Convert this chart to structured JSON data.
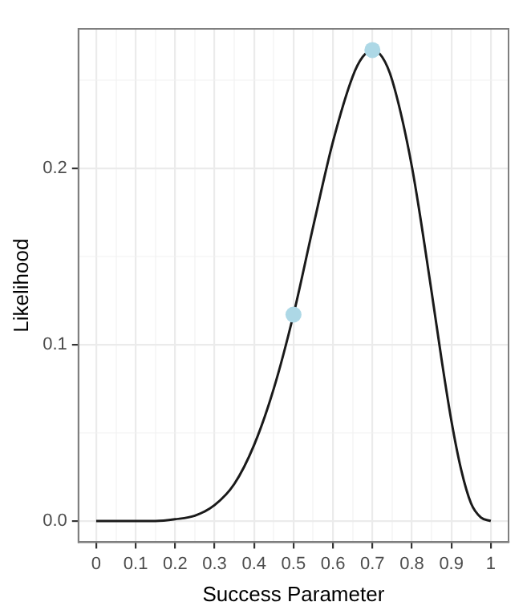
{
  "chart_data": {
    "type": "line",
    "xlabel": "Success Parameter",
    "ylabel": "Likelihood",
    "xlim": [
      -0.045,
      1.045
    ],
    "ylim": [
      -0.012,
      0.279
    ],
    "xticks": [
      0,
      {
        "value": 0.05,
        "label": null
      },
      0.1,
      {
        "value": 0.15,
        "label": null
      },
      0.2,
      {
        "value": 0.25,
        "label": null
      },
      0.3,
      {
        "value": 0.35,
        "label": null
      },
      0.4,
      {
        "value": 0.45,
        "label": null
      },
      0.5,
      {
        "value": 0.55,
        "label": null
      },
      0.6,
      {
        "value": 0.65,
        "label": null
      },
      0.7,
      {
        "value": 0.75,
        "label": null
      },
      0.8,
      {
        "value": 0.85,
        "label": null
      },
      0.9,
      {
        "value": 0.95,
        "label": null
      },
      1
    ],
    "yticks": [
      {
        "value": 0,
        "label": "0.0"
      },
      {
        "value": 0.05,
        "label": null
      },
      0.1,
      {
        "value": 0.15,
        "label": null
      },
      0.2,
      {
        "value": 0.25,
        "label": null
      }
    ],
    "grid": true,
    "legend": false,
    "series": [
      {
        "color": "#1a1a1a",
        "marker": "none",
        "line_style": "solid",
        "x": [
          0,
          0.05,
          0.1,
          0.15,
          0.2,
          0.25,
          0.3,
          0.35,
          0.4,
          0.45,
          0.5,
          0.55,
          0.6,
          0.65,
          0.675,
          0.7,
          0.725,
          0.75,
          0.8,
          0.85,
          0.875,
          0.9,
          0.925,
          0.95,
          0.975,
          1
        ],
        "values": [
          0,
          0,
          0,
          0,
          0.001,
          0.003,
          0.009,
          0.021,
          0.043,
          0.075,
          0.117,
          0.167,
          0.215,
          0.252,
          0.263,
          0.267,
          0.263,
          0.25,
          0.201,
          0.13,
          0.092,
          0.057,
          0.029,
          0.01,
          0.002,
          0
        ]
      },
      {
        "type": "scatter",
        "color": "#add8e6",
        "marker": "circle",
        "x": [
          0.5,
          0.7
        ],
        "values": [
          0.117,
          0.267
        ]
      }
    ]
  }
}
